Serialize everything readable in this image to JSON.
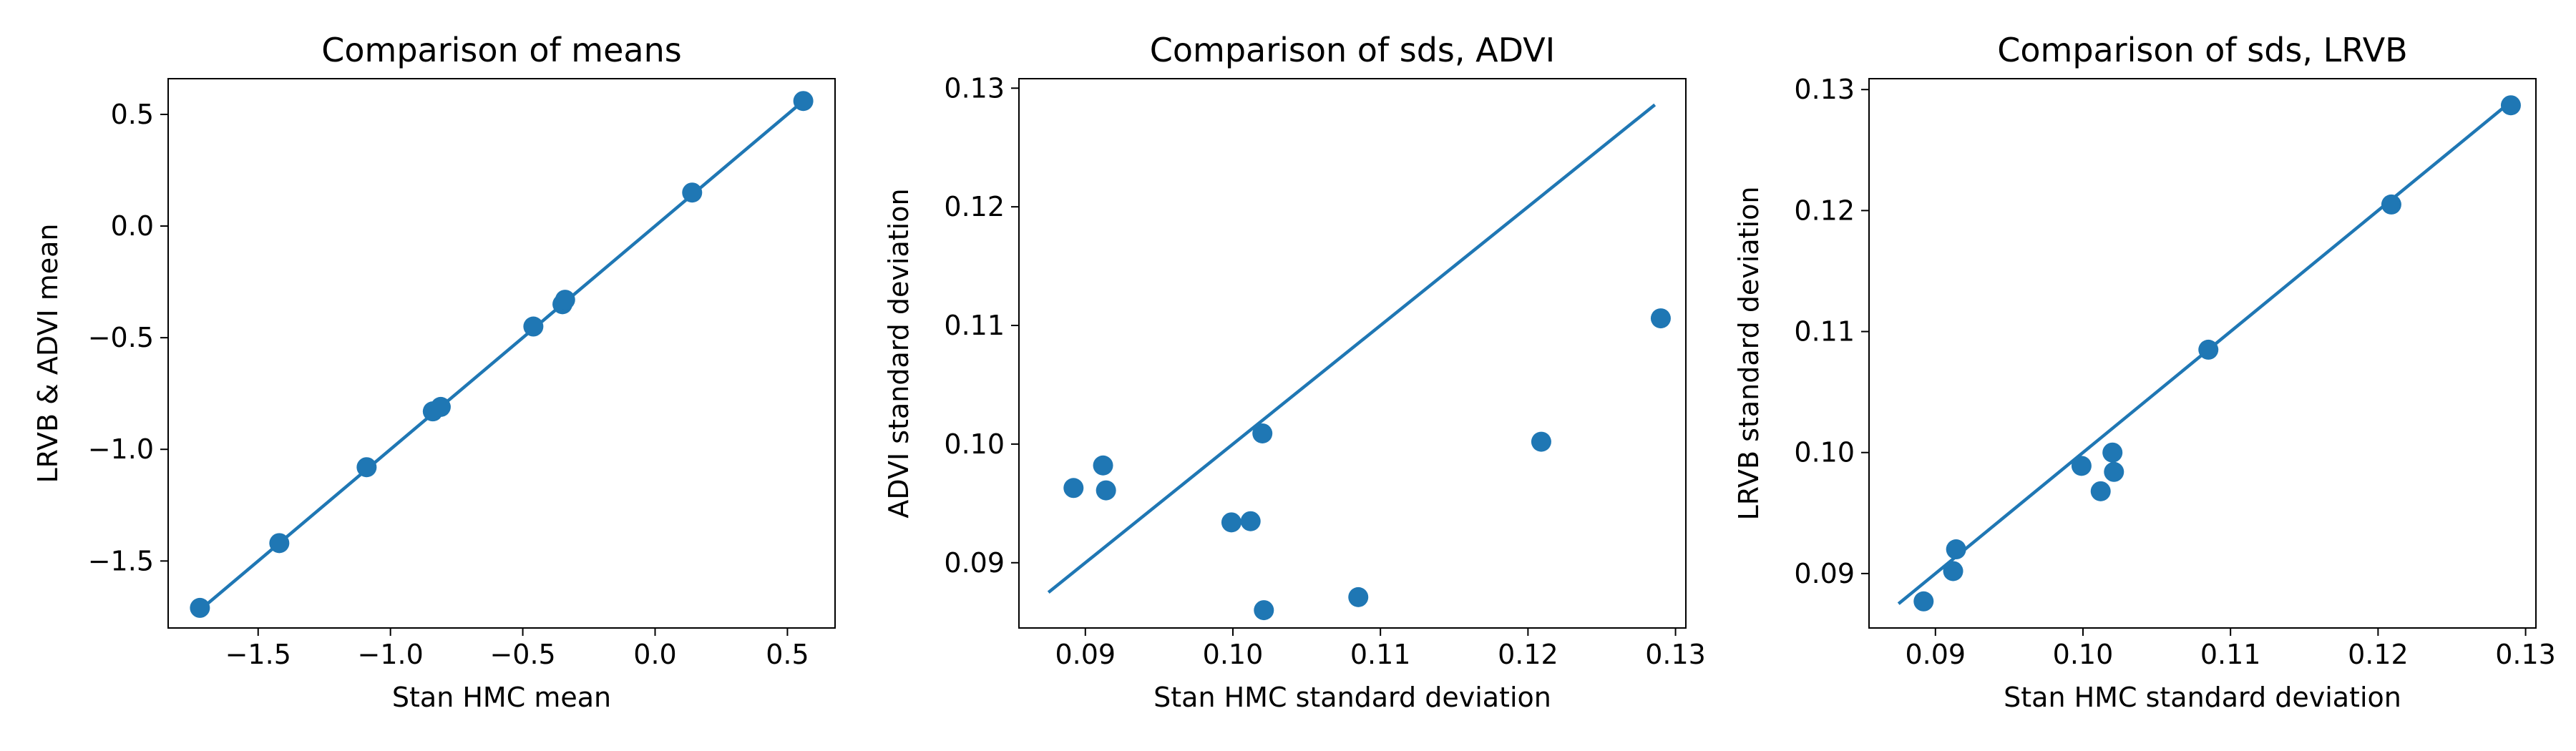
{
  "colors": {
    "series": "#1f77b4",
    "axes": "#000000",
    "background": "#ffffff"
  },
  "chart_data": [
    {
      "type": "scatter",
      "title": "Comparison of means",
      "xlabel": "Stan HMC mean",
      "ylabel": "LRVB & ADVI mean",
      "xlim": [
        -1.84,
        0.68
      ],
      "ylim": [
        -1.8,
        0.66
      ],
      "xticks": [
        -1.5,
        -1.0,
        -0.5,
        0.0,
        0.5
      ],
      "xtick_labels": [
        "−1.5",
        "−1.0",
        "−0.5",
        "0.0",
        "0.5"
      ],
      "yticks": [
        -1.5,
        -1.0,
        -0.5,
        0.0,
        0.5
      ],
      "ytick_labels": [
        "−1.5",
        "−1.0",
        "−0.5",
        "0.0",
        "0.5"
      ],
      "grid": false,
      "line": {
        "x": [
          -1.72,
          0.56
        ],
        "y": [
          -1.72,
          0.56
        ]
      },
      "points": {
        "x": [
          -1.72,
          -1.42,
          -1.09,
          -0.84,
          -0.81,
          -0.46,
          -0.35,
          -0.34,
          0.14,
          0.56
        ],
        "y": [
          -1.71,
          -1.42,
          -1.08,
          -0.83,
          -0.81,
          -0.45,
          -0.35,
          -0.33,
          0.15,
          0.56
        ]
      }
    },
    {
      "type": "scatter",
      "title": "Comparison of sds, ADVI",
      "xlabel": "Stan HMC standard deviation",
      "ylabel": "ADVI standard deviation",
      "xlim": [
        0.0855,
        0.1307
      ],
      "ylim": [
        0.0845,
        0.1308
      ],
      "xticks": [
        0.09,
        0.1,
        0.11,
        0.12,
        0.13
      ],
      "xtick_labels": [
        "0.09",
        "0.10",
        "0.11",
        "0.12",
        "0.13"
      ],
      "yticks": [
        0.09,
        0.1,
        0.11,
        0.12,
        0.13
      ],
      "ytick_labels": [
        "0.09",
        "0.10",
        "0.11",
        "0.12",
        "0.13"
      ],
      "grid": false,
      "line": {
        "x": [
          0.0875,
          0.1286
        ],
        "y": [
          0.0875,
          0.1286
        ]
      },
      "points": {
        "x": [
          0.0892,
          0.0912,
          0.0914,
          0.0999,
          0.1012,
          0.102,
          0.1021,
          0.1085,
          0.1209,
          0.129
        ],
        "y": [
          0.0963,
          0.0982,
          0.0961,
          0.0934,
          0.0935,
          0.1009,
          0.086,
          0.0871,
          0.1002,
          0.1106
        ]
      }
    },
    {
      "type": "scatter",
      "title": "Comparison of sds, LRVB",
      "xlabel": "Stan HMC standard deviation",
      "ylabel": "LRVB standard deviation",
      "xlim": [
        0.0855,
        0.1307
      ],
      "ylim": [
        0.0855,
        0.1309
      ],
      "xticks": [
        0.09,
        0.1,
        0.11,
        0.12,
        0.13
      ],
      "xtick_labels": [
        "0.09",
        "0.10",
        "0.11",
        "0.12",
        "0.13"
      ],
      "yticks": [
        0.09,
        0.1,
        0.11,
        0.12,
        0.13
      ],
      "ytick_labels": [
        "0.09",
        "0.10",
        "0.11",
        "0.12",
        "0.13"
      ],
      "grid": false,
      "line": {
        "x": [
          0.0875,
          0.1286
        ],
        "y": [
          0.0875,
          0.1286
        ]
      },
      "points": {
        "x": [
          0.0892,
          0.0912,
          0.0914,
          0.0999,
          0.1012,
          0.102,
          0.1021,
          0.1085,
          0.1209,
          0.129
        ],
        "y": [
          0.0877,
          0.0902,
          0.092,
          0.0989,
          0.0968,
          0.1,
          0.0984,
          0.1085,
          0.1205,
          0.1287
        ]
      }
    }
  ]
}
